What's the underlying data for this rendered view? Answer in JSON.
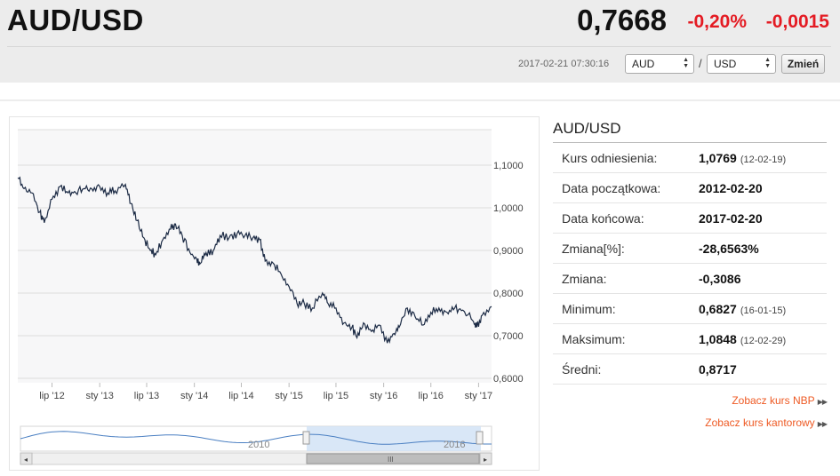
{
  "header": {
    "pair_title": "AUD/USD",
    "rate": "0,7668",
    "change_pct": "-0,20%",
    "change_abs": "-0,0015",
    "timestamp": "2017-02-21 07:30:16",
    "from_currency": "AUD",
    "separator": "/",
    "to_currency": "USD",
    "change_button": "Zmień"
  },
  "colors": {
    "negative": "#e41b23",
    "link": "#ee5a24",
    "line": "#1c2b45",
    "navigator_fill": "#cfe1f5"
  },
  "chart_data": {
    "type": "line",
    "title": "",
    "ylim": [
      0.6,
      1.1
    ],
    "y_ticks": [
      "1,1000",
      "1,0000",
      "0,9000",
      "0,8000",
      "0,7000",
      "0,6000"
    ],
    "y_tick_values": [
      1.1,
      1.0,
      0.9,
      0.8,
      0.7,
      0.6
    ],
    "xlim": [
      "2012-02-20",
      "2017-02-20"
    ],
    "x_ticks": [
      {
        "label": "lip '12",
        "date": "2012-07-01"
      },
      {
        "label": "sty '13",
        "date": "2013-01-01"
      },
      {
        "label": "lip '13",
        "date": "2013-07-01"
      },
      {
        "label": "sty '14",
        "date": "2014-01-01"
      },
      {
        "label": "lip '14",
        "date": "2014-07-01"
      },
      {
        "label": "sty '15",
        "date": "2015-01-01"
      },
      {
        "label": "lip '15",
        "date": "2015-07-01"
      },
      {
        "label": "sty '16",
        "date": "2016-01-01"
      },
      {
        "label": "lip '16",
        "date": "2016-07-01"
      },
      {
        "label": "sty '17",
        "date": "2017-01-01"
      }
    ],
    "series": [
      {
        "values": [
          {
            "x": "2012-02-20",
            "y": 1.07
          },
          {
            "x": "2012-03-15",
            "y": 1.045
          },
          {
            "x": "2012-04-15",
            "y": 1.035
          },
          {
            "x": "2012-05-15",
            "y": 0.99
          },
          {
            "x": "2012-06-01",
            "y": 0.965
          },
          {
            "x": "2012-07-01",
            "y": 1.02
          },
          {
            "x": "2012-08-01",
            "y": 1.05
          },
          {
            "x": "2012-09-01",
            "y": 1.035
          },
          {
            "x": "2012-10-01",
            "y": 1.035
          },
          {
            "x": "2012-11-01",
            "y": 1.045
          },
          {
            "x": "2012-12-01",
            "y": 1.045
          },
          {
            "x": "2013-01-01",
            "y": 1.05
          },
          {
            "x": "2013-02-01",
            "y": 1.035
          },
          {
            "x": "2013-03-01",
            "y": 1.04
          },
          {
            "x": "2013-04-10",
            "y": 1.055
          },
          {
            "x": "2013-05-01",
            "y": 1.01
          },
          {
            "x": "2013-05-25",
            "y": 0.97
          },
          {
            "x": "2013-06-20",
            "y": 0.93
          },
          {
            "x": "2013-07-15",
            "y": 0.9
          },
          {
            "x": "2013-08-05",
            "y": 0.89
          },
          {
            "x": "2013-09-01",
            "y": 0.925
          },
          {
            "x": "2013-10-01",
            "y": 0.95
          },
          {
            "x": "2013-10-20",
            "y": 0.962
          },
          {
            "x": "2013-11-15",
            "y": 0.935
          },
          {
            "x": "2013-12-15",
            "y": 0.895
          },
          {
            "x": "2014-01-10",
            "y": 0.88
          },
          {
            "x": "2014-01-25",
            "y": 0.87
          },
          {
            "x": "2014-02-15",
            "y": 0.895
          },
          {
            "x": "2014-03-15",
            "y": 0.9
          },
          {
            "x": "2014-04-10",
            "y": 0.935
          },
          {
            "x": "2014-05-15",
            "y": 0.93
          },
          {
            "x": "2014-06-15",
            "y": 0.94
          },
          {
            "x": "2014-07-15",
            "y": 0.935
          },
          {
            "x": "2014-08-15",
            "y": 0.93
          },
          {
            "x": "2014-09-10",
            "y": 0.925
          },
          {
            "x": "2014-10-01",
            "y": 0.875
          },
          {
            "x": "2014-11-01",
            "y": 0.87
          },
          {
            "x": "2014-12-01",
            "y": 0.845
          },
          {
            "x": "2015-01-01",
            "y": 0.815
          },
          {
            "x": "2015-02-01",
            "y": 0.775
          },
          {
            "x": "2015-03-01",
            "y": 0.775
          },
          {
            "x": "2015-04-01",
            "y": 0.765
          },
          {
            "x": "2015-05-10",
            "y": 0.8
          },
          {
            "x": "2015-06-01",
            "y": 0.775
          },
          {
            "x": "2015-07-01",
            "y": 0.765
          },
          {
            "x": "2015-08-01",
            "y": 0.73
          },
          {
            "x": "2015-09-01",
            "y": 0.72
          },
          {
            "x": "2015-09-20",
            "y": 0.695
          },
          {
            "x": "2015-10-15",
            "y": 0.73
          },
          {
            "x": "2015-11-15",
            "y": 0.71
          },
          {
            "x": "2015-12-15",
            "y": 0.725
          },
          {
            "x": "2016-01-15",
            "y": 0.6827
          },
          {
            "x": "2016-02-10",
            "y": 0.705
          },
          {
            "x": "2016-03-01",
            "y": 0.72
          },
          {
            "x": "2016-04-01",
            "y": 0.765
          },
          {
            "x": "2016-05-01",
            "y": 0.745
          },
          {
            "x": "2016-06-01",
            "y": 0.725
          },
          {
            "x": "2016-07-01",
            "y": 0.755
          },
          {
            "x": "2016-08-01",
            "y": 0.765
          },
          {
            "x": "2016-09-01",
            "y": 0.755
          },
          {
            "x": "2016-10-01",
            "y": 0.765
          },
          {
            "x": "2016-11-01",
            "y": 0.76
          },
          {
            "x": "2016-12-10",
            "y": 0.735
          },
          {
            "x": "2016-12-25",
            "y": 0.72
          },
          {
            "x": "2017-01-15",
            "y": 0.748
          },
          {
            "x": "2017-02-20",
            "y": 0.7683
          }
        ]
      }
    ],
    "navigator": {
      "labels": [
        "2010",
        "2016"
      ],
      "scrollbar_grip": "III"
    }
  },
  "info": {
    "title": "AUD/USD",
    "rows": [
      {
        "label": "Kurs odniesienia:",
        "value": "1,0769",
        "date": "(12-02-19)"
      },
      {
        "label": "Data początkowa:",
        "value": "2012-02-20",
        "date": ""
      },
      {
        "label": "Data końcowa:",
        "value": "2017-02-20",
        "date": ""
      },
      {
        "label": "Zmiana[%]:",
        "value": "-28,6563%",
        "date": ""
      },
      {
        "label": "Zmiana:",
        "value": "-0,3086",
        "date": ""
      },
      {
        "label": "Minimum:",
        "value": "0,6827",
        "date": "(16-01-15)"
      },
      {
        "label": "Maksimum:",
        "value": "1,0848",
        "date": "(12-02-29)"
      },
      {
        "label": "Średni:",
        "value": "0,8717",
        "date": ""
      }
    ],
    "links": [
      "Zobacz kurs NBP",
      "Zobacz kurs kantorowy"
    ]
  }
}
